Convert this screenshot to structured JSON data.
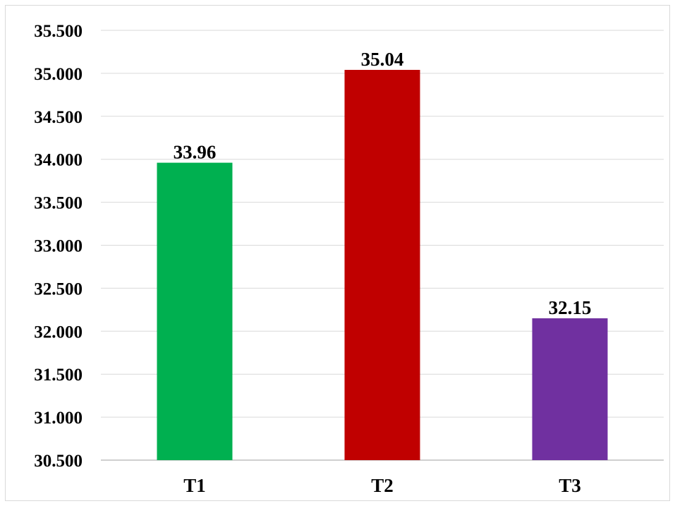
{
  "chart_data": {
    "type": "bar",
    "title": "",
    "xlabel": "",
    "ylabel": "",
    "categories": [
      "T1",
      "T2",
      "T3"
    ],
    "values": [
      33.96,
      35.04,
      32.15
    ],
    "data_labels": [
      "33.96",
      "35.04",
      "32.15"
    ],
    "colors": [
      "#00b050",
      "#c00000",
      "#7030a0"
    ],
    "ylim": [
      30.5,
      35.5
    ],
    "yticks": [
      30.5,
      31.0,
      31.5,
      32.0,
      32.5,
      33.0,
      33.5,
      34.0,
      34.5,
      35.0,
      35.5
    ],
    "ytick_labels": [
      "30.500",
      "31.000",
      "31.500",
      "32.000",
      "32.500",
      "33.000",
      "33.500",
      "34.000",
      "34.500",
      "35.000",
      "35.500"
    ],
    "grid": true,
    "legend": "none"
  }
}
